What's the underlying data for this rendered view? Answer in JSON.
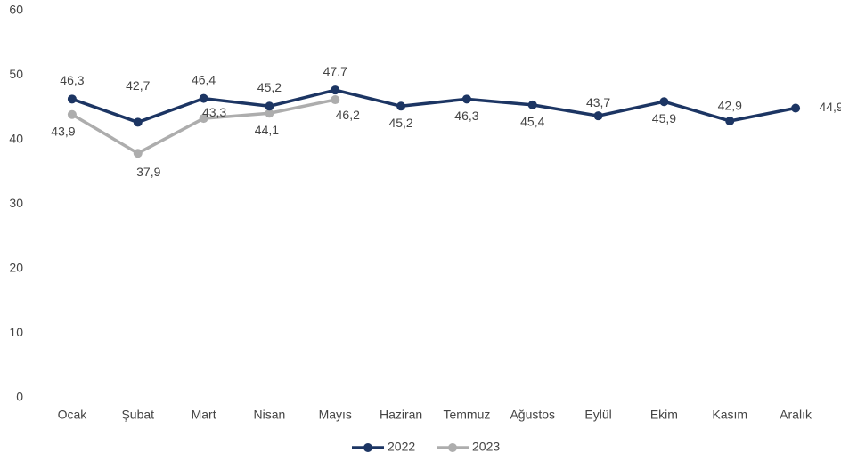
{
  "chart_data": {
    "type": "line",
    "categories": [
      "Ocak",
      "Şubat",
      "Mart",
      "Nisan",
      "Mayıs",
      "Haziran",
      "Temmuz",
      "Ağustos",
      "Eylül",
      "Ekim",
      "Kasım",
      "Aralık"
    ],
    "series": [
      {
        "name": "2022",
        "color": "#1c3563",
        "values": [
          46.3,
          42.7,
          46.4,
          45.2,
          47.7,
          45.2,
          46.3,
          45.4,
          43.7,
          45.9,
          42.9,
          44.9
        ],
        "value_labels": [
          "46,3",
          "42,7",
          "46,4",
          "45,2",
          "47,7",
          "45,2",
          "46,3",
          "45,4",
          "43,7",
          "45,9",
          "42,9",
          "44,9"
        ]
      },
      {
        "name": "2023",
        "color": "#adadad",
        "values": [
          43.9,
          37.9,
          43.3,
          44.1,
          46.2,
          null,
          null,
          null,
          null,
          null,
          null,
          null
        ],
        "value_labels": [
          "43,9",
          "37,9",
          "43,3",
          "44,1",
          "46,2",
          null,
          null,
          null,
          null,
          null,
          null,
          null
        ]
      }
    ],
    "ylim": [
      0,
      60
    ],
    "yticks": [
      0,
      10,
      20,
      30,
      40,
      50,
      60
    ],
    "grid": false,
    "legend": "bottom"
  }
}
